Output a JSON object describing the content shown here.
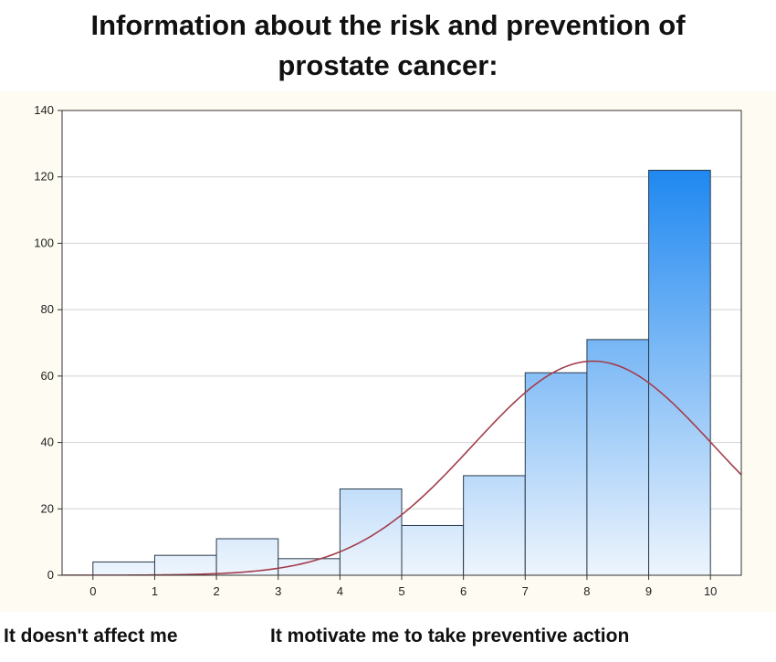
{
  "title_lines": [
    "Information about the risk and prevention of",
    "prostate cancer:"
  ],
  "footer": {
    "left_label": "It doesn't affect me",
    "right_label": "It motivate me to take preventive action"
  },
  "colors": {
    "bar_top": "#1f88f0",
    "bar_bottom": "#eef5fd",
    "bar_stroke": "#2a3a4a",
    "curve": "#a23d4a",
    "grid": "#d2d2d2",
    "background": "#fdfbf2"
  },
  "chart_data": {
    "type": "bar",
    "title": "Information about the risk and prevention of prostate cancer:",
    "x_ticks": [
      0,
      1,
      2,
      3,
      4,
      5,
      6,
      7,
      8,
      9,
      10
    ],
    "y_ticks": [
      0,
      20,
      40,
      60,
      80,
      100,
      120,
      140
    ],
    "xlim": [
      -0.5,
      10.5
    ],
    "ylim": [
      0,
      140
    ],
    "grid": "horizontal",
    "bins": [
      {
        "x0": 0,
        "x1": 1,
        "value": 4
      },
      {
        "x0": 1,
        "x1": 2,
        "value": 6
      },
      {
        "x0": 2,
        "x1": 3,
        "value": 11
      },
      {
        "x0": 3,
        "x1": 4,
        "value": 5
      },
      {
        "x0": 4,
        "x1": 5,
        "value": 26
      },
      {
        "x0": 5,
        "x1": 6,
        "value": 15
      },
      {
        "x0": 6,
        "x1": 7,
        "value": 30
      },
      {
        "x0": 7,
        "x1": 8,
        "value": 61
      },
      {
        "x0": 8,
        "x1": 9,
        "value": 71
      },
      {
        "x0": 9,
        "x1": 10,
        "value": 122
      }
    ],
    "fit_curve": {
      "type": "normal",
      "mean": 8.1,
      "sd": 1.95,
      "peak": 64.5
    }
  }
}
